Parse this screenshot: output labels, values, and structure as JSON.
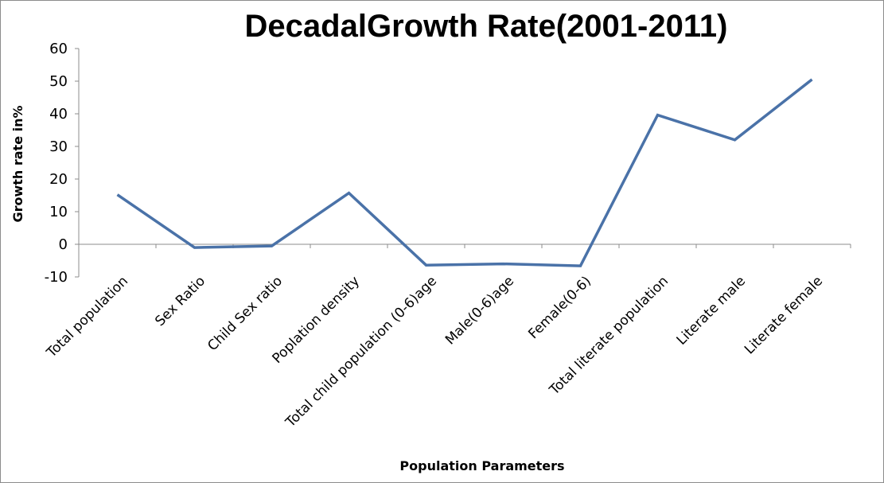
{
  "chart_data": {
    "type": "line",
    "title": "DecadalGrowth Rate(2001-2011)",
    "xlabel": "Population Parameters",
    "ylabel": "Growth rate in%",
    "ylim": [
      -10,
      60
    ],
    "yticks": [
      -10,
      0,
      10,
      20,
      30,
      40,
      50,
      60
    ],
    "grid": false,
    "legend": "none",
    "categories": [
      "Total population",
      "Sex Ratio",
      "Child Sex ratio",
      "Poplation density",
      "Total child population (0-6)age",
      "Male(0-6)age",
      "Female(0-6)",
      "Total literate population",
      "Literate male",
      "Literate female"
    ],
    "series": [
      {
        "color": "#4a72a8",
        "values": [
          15.2,
          -1.0,
          -0.5,
          15.7,
          -6.4,
          -6.0,
          -6.6,
          39.6,
          32.0,
          50.5
        ]
      }
    ]
  }
}
